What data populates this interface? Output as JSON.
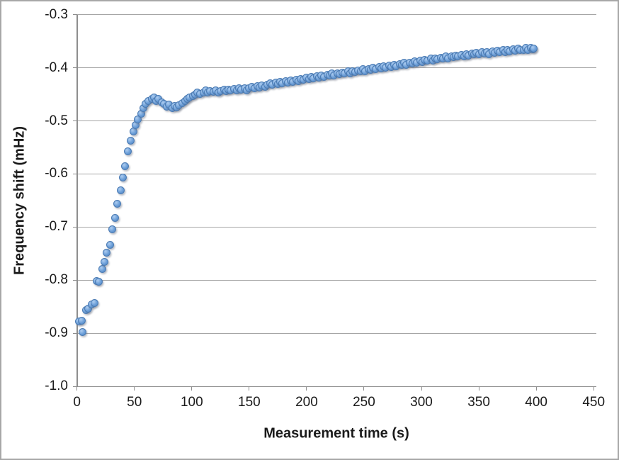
{
  "style": {
    "background": "#ffffff",
    "frame_border_color": "#a7a7a7",
    "gridline_color": "#a6a6a6",
    "axis_color": "#8e8e8e",
    "text_color": "#1a1a1a",
    "marker_fill_light": "#aecdf0",
    "marker_fill": "#6b9ed8",
    "marker_fill_dark": "#4f83bf",
    "marker_border": "#4a7ab2",
    "marker_shadow": "rgba(110,118,132,0.45)"
  },
  "chart_data": {
    "type": "scatter",
    "title": "",
    "xlabel": "Measurement time (s)",
    "ylabel": "Frequency shift (mHz)",
    "xlim": [
      0,
      450
    ],
    "ylim": [
      -1.0,
      -0.3
    ],
    "x_ticks": [
      0,
      50,
      100,
      150,
      200,
      250,
      300,
      350,
      400,
      450
    ],
    "y_ticks": [
      -0.3,
      -0.4,
      -0.5,
      -0.6,
      -0.7,
      -0.8,
      -0.9,
      -1.0
    ],
    "grid": "horizontal gridlines at each y tick",
    "legend": "none",
    "series": [
      {
        "name": "Frequency shift vs measurement time",
        "marker": "circle",
        "color": "#6b9ed8",
        "points": [
          [
            2,
            -0.878
          ],
          [
            4,
            -0.876
          ],
          [
            5,
            -0.897
          ],
          [
            8,
            -0.856
          ],
          [
            10,
            -0.853
          ],
          [
            13,
            -0.846
          ],
          [
            15,
            -0.843
          ],
          [
            17,
            -0.801
          ],
          [
            19,
            -0.803
          ],
          [
            22,
            -0.779
          ],
          [
            24,
            -0.766
          ],
          [
            26,
            -0.748
          ],
          [
            29,
            -0.733
          ],
          [
            31,
            -0.704
          ],
          [
            33,
            -0.683
          ],
          [
            35,
            -0.656
          ],
          [
            38,
            -0.631
          ],
          [
            40,
            -0.607
          ],
          [
            42,
            -0.586
          ],
          [
            44,
            -0.558
          ],
          [
            47,
            -0.538
          ],
          [
            49,
            -0.52
          ],
          [
            51,
            -0.508
          ],
          [
            53,
            -0.497
          ],
          [
            56,
            -0.487
          ],
          [
            58,
            -0.476
          ],
          [
            60,
            -0.468
          ],
          [
            62,
            -0.463
          ],
          [
            65,
            -0.459
          ],
          [
            67,
            -0.456
          ],
          [
            69,
            -0.463
          ],
          [
            71,
            -0.459
          ],
          [
            74,
            -0.465
          ],
          [
            76,
            -0.468
          ],
          [
            78,
            -0.473
          ],
          [
            80,
            -0.469
          ],
          [
            83,
            -0.476
          ],
          [
            85,
            -0.472
          ],
          [
            87,
            -0.475
          ],
          [
            89,
            -0.47
          ],
          [
            92,
            -0.466
          ],
          [
            94,
            -0.462
          ],
          [
            96,
            -0.459
          ],
          [
            98,
            -0.456
          ],
          [
            101,
            -0.453
          ],
          [
            103,
            -0.45
          ],
          [
            105,
            -0.447
          ],
          [
            107,
            -0.449
          ],
          [
            110,
            -0.446
          ],
          [
            112,
            -0.443
          ],
          [
            114,
            -0.447
          ],
          [
            116,
            -0.444
          ],
          [
            119,
            -0.445
          ],
          [
            121,
            -0.442
          ],
          [
            123,
            -0.447
          ],
          [
            125,
            -0.444
          ],
          [
            128,
            -0.441
          ],
          [
            130,
            -0.444
          ],
          [
            132,
            -0.441
          ],
          [
            134,
            -0.443
          ],
          [
            137,
            -0.44
          ],
          [
            139,
            -0.442
          ],
          [
            141,
            -0.439
          ],
          [
            143,
            -0.441
          ],
          [
            146,
            -0.438
          ],
          [
            148,
            -0.442
          ],
          [
            150,
            -0.439
          ],
          [
            152,
            -0.436
          ],
          [
            155,
            -0.438
          ],
          [
            157,
            -0.435
          ],
          [
            159,
            -0.437
          ],
          [
            161,
            -0.433
          ],
          [
            164,
            -0.436
          ],
          [
            166,
            -0.432
          ],
          [
            168,
            -0.429
          ],
          [
            170,
            -0.432
          ],
          [
            173,
            -0.428
          ],
          [
            175,
            -0.431
          ],
          [
            177,
            -0.427
          ],
          [
            179,
            -0.429
          ],
          [
            182,
            -0.425
          ],
          [
            184,
            -0.428
          ],
          [
            186,
            -0.424
          ],
          [
            188,
            -0.426
          ],
          [
            191,
            -0.422
          ],
          [
            193,
            -0.425
          ],
          [
            195,
            -0.421
          ],
          [
            197,
            -0.423
          ],
          [
            200,
            -0.419
          ],
          [
            202,
            -0.421
          ],
          [
            204,
            -0.417
          ],
          [
            206,
            -0.42
          ],
          [
            209,
            -0.416
          ],
          [
            211,
            -0.418
          ],
          [
            213,
            -0.414
          ],
          [
            215,
            -0.417
          ],
          [
            218,
            -0.413
          ],
          [
            220,
            -0.415
          ],
          [
            222,
            -0.411
          ],
          [
            224,
            -0.414
          ],
          [
            227,
            -0.41
          ],
          [
            229,
            -0.412
          ],
          [
            231,
            -0.409
          ],
          [
            233,
            -0.411
          ],
          [
            236,
            -0.407
          ],
          [
            238,
            -0.41
          ],
          [
            240,
            -0.406
          ],
          [
            242,
            -0.408
          ],
          [
            245,
            -0.405
          ],
          [
            247,
            -0.407
          ],
          [
            249,
            -0.403
          ],
          [
            251,
            -0.406
          ],
          [
            254,
            -0.402
          ],
          [
            256,
            -0.404
          ],
          [
            258,
            -0.4
          ],
          [
            260,
            -0.403
          ],
          [
            263,
            -0.399
          ],
          [
            265,
            -0.401
          ],
          [
            267,
            -0.397
          ],
          [
            269,
            -0.4
          ],
          [
            272,
            -0.396
          ],
          [
            274,
            -0.398
          ],
          [
            276,
            -0.394
          ],
          [
            278,
            -0.397
          ],
          [
            281,
            -0.393
          ],
          [
            283,
            -0.395
          ],
          [
            285,
            -0.391
          ],
          [
            287,
            -0.394
          ],
          [
            290,
            -0.39
          ],
          [
            292,
            -0.392
          ],
          [
            294,
            -0.388
          ],
          [
            296,
            -0.391
          ],
          [
            299,
            -0.386
          ],
          [
            301,
            -0.389
          ],
          [
            303,
            -0.385
          ],
          [
            305,
            -0.387
          ],
          [
            308,
            -0.383
          ],
          [
            310,
            -0.386
          ],
          [
            312,
            -0.382
          ],
          [
            314,
            -0.384
          ],
          [
            317,
            -0.381
          ],
          [
            319,
            -0.383
          ],
          [
            321,
            -0.379
          ],
          [
            323,
            -0.382
          ],
          [
            326,
            -0.378
          ],
          [
            328,
            -0.38
          ],
          [
            330,
            -0.377
          ],
          [
            332,
            -0.379
          ],
          [
            335,
            -0.376
          ],
          [
            337,
            -0.378
          ],
          [
            339,
            -0.374
          ],
          [
            341,
            -0.377
          ],
          [
            344,
            -0.373
          ],
          [
            346,
            -0.375
          ],
          [
            348,
            -0.372
          ],
          [
            350,
            -0.374
          ],
          [
            353,
            -0.371
          ],
          [
            355,
            -0.373
          ],
          [
            357,
            -0.37
          ],
          [
            359,
            -0.374
          ],
          [
            362,
            -0.369
          ],
          [
            364,
            -0.372
          ],
          [
            366,
            -0.368
          ],
          [
            368,
            -0.371
          ],
          [
            371,
            -0.367
          ],
          [
            373,
            -0.37
          ],
          [
            375,
            -0.366
          ],
          [
            377,
            -0.369
          ],
          [
            380,
            -0.365
          ],
          [
            382,
            -0.368
          ],
          [
            384,
            -0.364
          ],
          [
            386,
            -0.367
          ],
          [
            389,
            -0.366
          ],
          [
            391,
            -0.363
          ],
          [
            393,
            -0.366
          ],
          [
            395,
            -0.362
          ],
          [
            397,
            -0.365
          ],
          [
            398,
            -0.364
          ]
        ]
      }
    ]
  }
}
